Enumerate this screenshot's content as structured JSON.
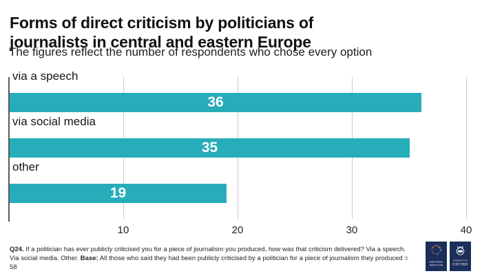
{
  "title": "Forms of direct criticism by politicians of journalists in central and eastern Europe",
  "subtitle": "The figures reflect the number of respondents who chose every option",
  "chart_data": {
    "type": "bar",
    "orientation": "horizontal",
    "categories": [
      "via a speech",
      "via social media",
      "other"
    ],
    "values": [
      36,
      35,
      19
    ],
    "xlim": [
      0,
      40
    ],
    "xticks": [
      10,
      20,
      30,
      40
    ],
    "grid": true,
    "legend": "none",
    "bar_color": "#27acb9",
    "value_label_color": "#ffffff",
    "axis_line_color": "#58595b",
    "gridline_color": "#c8c9ca"
  },
  "footer": {
    "q_label": "Q24.",
    "q_text": " If a politician has ever publicly criticised you for a piece of journalism you produced, how was that criticism delivered? Via a speech. Via social media. Other. ",
    "base_label": "Base:",
    "base_text": " All those who said they had been publicly criticised by a politician for a piece of journalism they produced = 58"
  },
  "logos": {
    "navy": "#1c2e5a",
    "reuters": {
      "line1": "REUTERS",
      "line2": "INSTITUTE"
    },
    "oxford": {
      "line1": "UNIVERSITY OF",
      "line2": "OXFORD"
    }
  }
}
